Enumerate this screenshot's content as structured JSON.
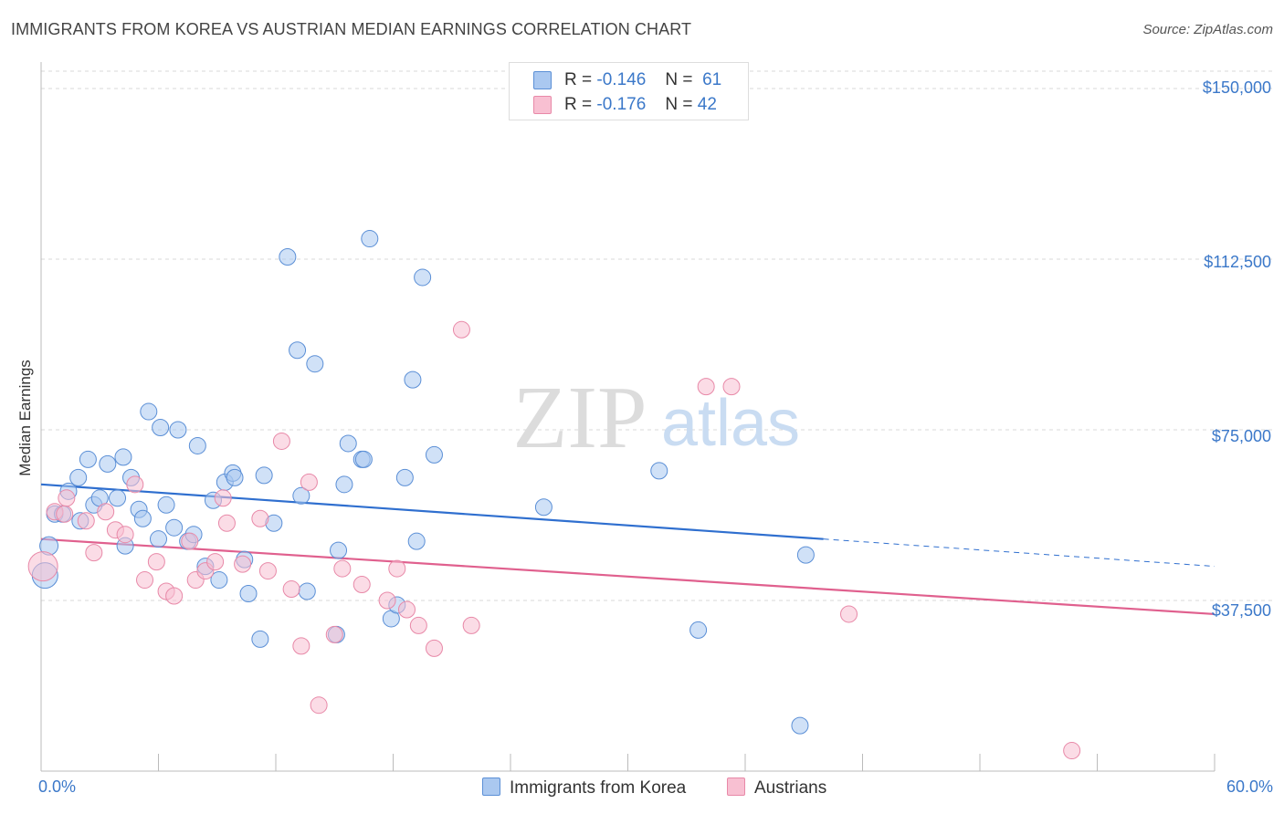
{
  "header": {
    "title": "IMMIGRANTS FROM KOREA VS AUSTRIAN MEDIAN EARNINGS CORRELATION CHART",
    "source": "Source: ZipAtlas.com"
  },
  "legend": {
    "rows": [
      {
        "r_label": "R =",
        "r_value": "-0.146",
        "n_label": "N =",
        "n_value": "61",
        "color": "#aac8f0"
      },
      {
        "r_label": "R =",
        "r_value": "-0.176",
        "n_label": "N =",
        "n_value": "42",
        "color": "#f8bcd0"
      }
    ]
  },
  "colors": {
    "korea_fill": "#aac8f0",
    "korea_stroke": "#5b8fd6",
    "korea_line": "#2f6fcf",
    "austria_fill": "#f8c0d2",
    "austria_stroke": "#e889a8",
    "austria_line": "#e0608e",
    "axis_text": "#3b78c9",
    "grid": "#d8d8d8"
  },
  "chart_data": {
    "type": "scatter",
    "title": "IMMIGRANTS FROM KOREA VS AUSTRIAN MEDIAN EARNINGS CORRELATION CHART",
    "xlabel": "",
    "ylabel": "Median Earnings",
    "xlim": [
      0,
      60
    ],
    "ylim": [
      0,
      150000
    ],
    "x_tick_labels": [
      "0.0%",
      "60.0%"
    ],
    "y_ticks": [
      37500,
      75000,
      112500,
      150000
    ],
    "y_tick_labels": [
      "$37,500",
      "$75,000",
      "$112,500",
      "$150,000"
    ],
    "grid": true,
    "legend_position": "top-center",
    "series": [
      {
        "name": "Immigrants from Korea",
        "color": "#aac8f0",
        "trend": {
          "x": [
            0,
            40
          ],
          "y": [
            63000,
            51000
          ],
          "dashed_extension_to": 60,
          "y_end": 45000
        },
        "points": [
          [
            0.2,
            43000,
            14
          ],
          [
            0.4,
            49500,
            10
          ],
          [
            0.7,
            56500,
            9
          ],
          [
            1.1,
            56500,
            9
          ],
          [
            1.4,
            61500,
            9
          ],
          [
            1.9,
            64500,
            9
          ],
          [
            2.0,
            55000,
            9
          ],
          [
            2.4,
            68500,
            9
          ],
          [
            2.7,
            58500,
            9
          ],
          [
            3.0,
            60000,
            9
          ],
          [
            3.4,
            67500,
            9
          ],
          [
            3.9,
            60000,
            9
          ],
          [
            4.2,
            69000,
            9
          ],
          [
            4.6,
            64500,
            9
          ],
          [
            5.0,
            57500,
            9
          ],
          [
            5.2,
            55500,
            9
          ],
          [
            5.5,
            79000,
            9
          ],
          [
            6.1,
            75500,
            9
          ],
          [
            6.4,
            58500,
            9
          ],
          [
            6.8,
            53500,
            9
          ],
          [
            7.0,
            75000,
            9
          ],
          [
            7.5,
            50500,
            9
          ],
          [
            7.8,
            52000,
            9
          ],
          [
            8.0,
            71500,
            9
          ],
          [
            8.4,
            45000,
            9
          ],
          [
            8.8,
            59500,
            9
          ],
          [
            9.1,
            42000,
            9
          ],
          [
            9.4,
            63500,
            9
          ],
          [
            9.8,
            65500,
            9
          ],
          [
            9.9,
            64500,
            9
          ],
          [
            10.4,
            46500,
            9
          ],
          [
            10.6,
            39000,
            9
          ],
          [
            11.2,
            29000,
            9
          ],
          [
            11.4,
            65000,
            9
          ],
          [
            11.9,
            54500,
            9
          ],
          [
            12.6,
            113000,
            9
          ],
          [
            13.1,
            92500,
            9
          ],
          [
            13.3,
            60500,
            9
          ],
          [
            13.6,
            39500,
            9
          ],
          [
            14.0,
            89500,
            9
          ],
          [
            15.1,
            30000,
            9
          ],
          [
            15.2,
            48500,
            9
          ],
          [
            15.5,
            63000,
            9
          ],
          [
            15.7,
            72000,
            9
          ],
          [
            16.4,
            68500,
            9
          ],
          [
            16.5,
            68500,
            9
          ],
          [
            16.8,
            117000,
            9
          ],
          [
            17.9,
            33500,
            9
          ],
          [
            18.2,
            36500,
            9
          ],
          [
            18.6,
            64500,
            9
          ],
          [
            19.0,
            86000,
            9
          ],
          [
            19.2,
            50500,
            9
          ],
          [
            19.5,
            108500,
            9
          ],
          [
            20.1,
            69500,
            9
          ],
          [
            25.7,
            58000,
            9
          ],
          [
            31.6,
            66000,
            9
          ],
          [
            33.6,
            31000,
            9
          ],
          [
            38.8,
            10000,
            9
          ],
          [
            39.1,
            47500,
            9
          ],
          [
            4.3,
            49500,
            9
          ],
          [
            6.0,
            51000,
            9
          ]
        ]
      },
      {
        "name": "Austrians",
        "color": "#f8c0d2",
        "trend": {
          "x": [
            0,
            60
          ],
          "y": [
            51000,
            34500
          ]
        },
        "points": [
          [
            0.1,
            45000,
            16
          ],
          [
            0.7,
            57000,
            9
          ],
          [
            1.2,
            56500,
            9
          ],
          [
            1.3,
            60000,
            9
          ],
          [
            2.3,
            55000,
            9
          ],
          [
            2.7,
            48000,
            9
          ],
          [
            3.3,
            57000,
            9
          ],
          [
            3.8,
            53000,
            9
          ],
          [
            4.3,
            52000,
            9
          ],
          [
            4.8,
            63000,
            9
          ],
          [
            5.3,
            42000,
            9
          ],
          [
            5.9,
            46000,
            9
          ],
          [
            6.4,
            39500,
            9
          ],
          [
            6.8,
            38500,
            9
          ],
          [
            7.6,
            50500,
            9
          ],
          [
            7.9,
            42000,
            9
          ],
          [
            8.4,
            44000,
            9
          ],
          [
            8.9,
            46000,
            9
          ],
          [
            9.3,
            60000,
            9
          ],
          [
            9.5,
            54500,
            9
          ],
          [
            10.3,
            45500,
            9
          ],
          [
            11.2,
            55500,
            9
          ],
          [
            11.6,
            44000,
            9
          ],
          [
            12.3,
            72500,
            9
          ],
          [
            12.8,
            40000,
            9
          ],
          [
            13.3,
            27500,
            9
          ],
          [
            13.7,
            63500,
            9
          ],
          [
            14.2,
            14500,
            9
          ],
          [
            15.0,
            30000,
            9
          ],
          [
            15.4,
            44500,
            9
          ],
          [
            16.4,
            41000,
            9
          ],
          [
            17.7,
            37500,
            9
          ],
          [
            18.2,
            44500,
            9
          ],
          [
            18.7,
            35500,
            9
          ],
          [
            19.3,
            32000,
            9
          ],
          [
            20.1,
            27000,
            9
          ],
          [
            21.5,
            97000,
            9
          ],
          [
            22.0,
            32000,
            9
          ],
          [
            34.0,
            84500,
            9
          ],
          [
            35.3,
            84500,
            9
          ],
          [
            41.3,
            34500,
            9
          ],
          [
            52.7,
            4500,
            9
          ]
        ]
      }
    ]
  },
  "bottom_legend": {
    "items": [
      {
        "label": "Immigrants from Korea",
        "color": "#aac8f0"
      },
      {
        "label": "Austrians",
        "color": "#f8c0d2"
      }
    ]
  },
  "watermark": {
    "part1": "ZIP",
    "part2": "atlas"
  }
}
